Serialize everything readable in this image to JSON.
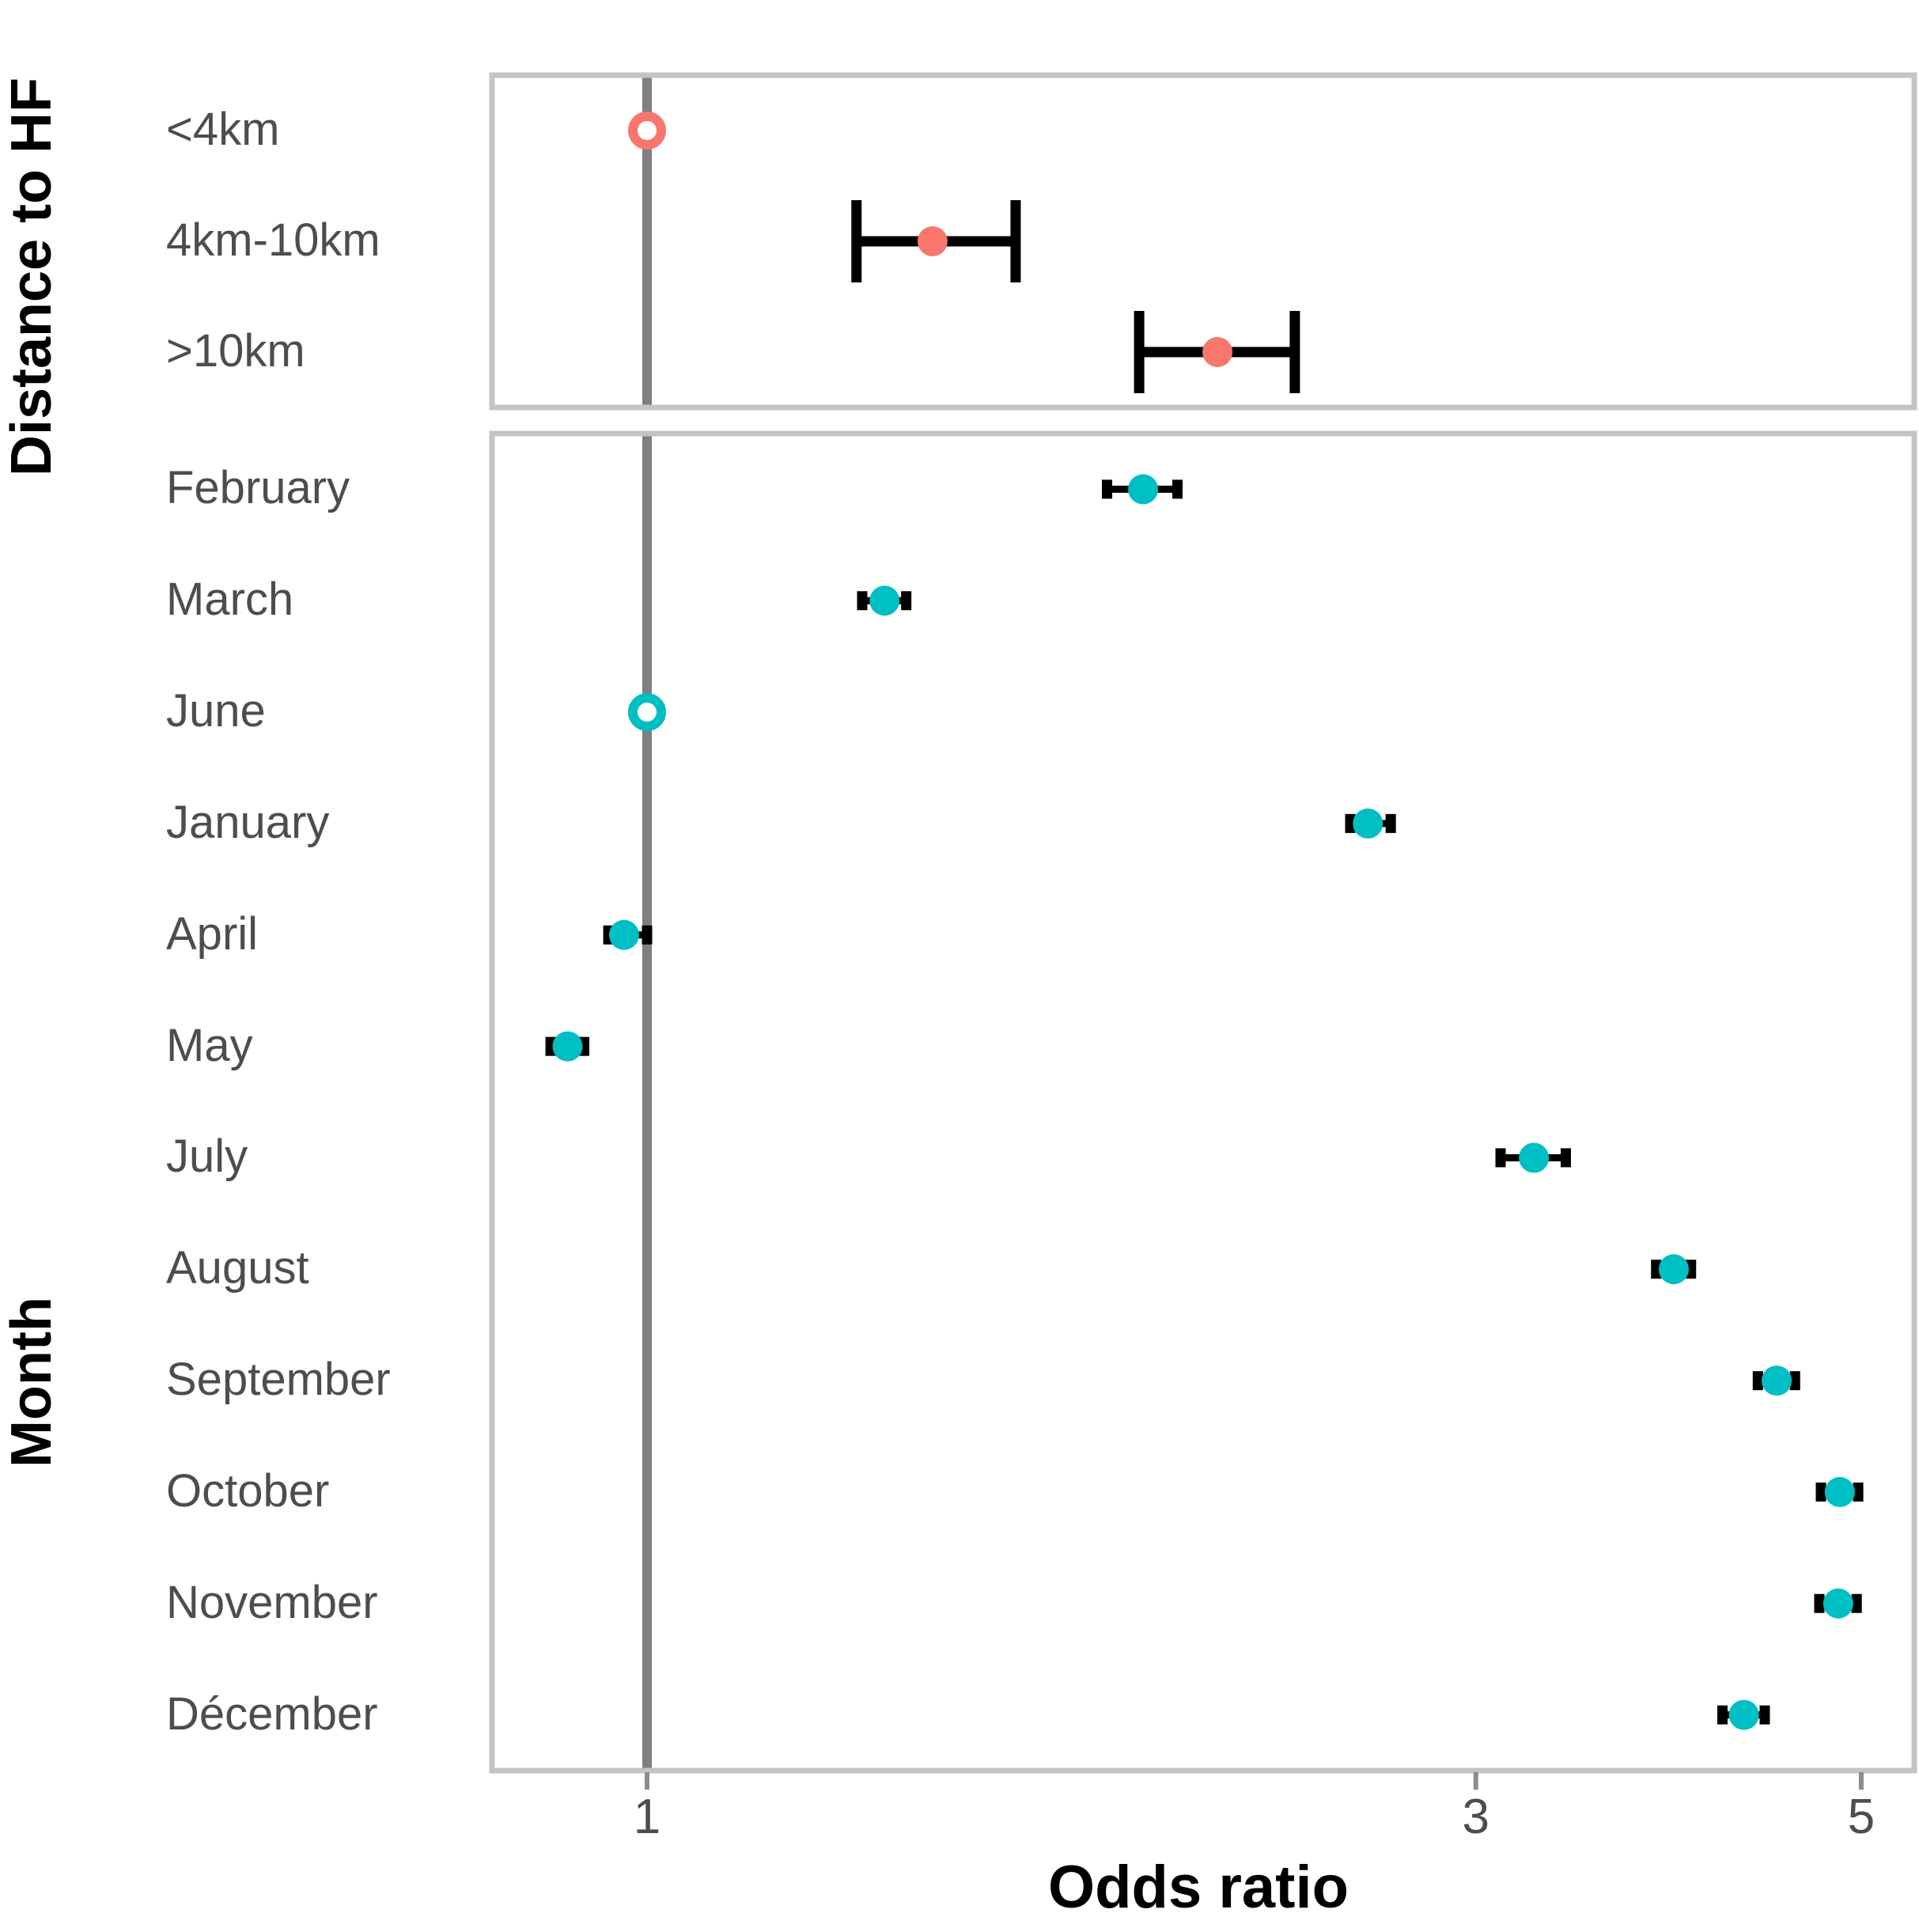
{
  "chart_data": {
    "type": "scatter",
    "title": "",
    "xlabel": "Odds ratio",
    "x_scale": "log",
    "x_ticks": [
      1,
      3,
      5
    ],
    "x_range": [
      0.81,
      5.37
    ],
    "reference_line_x": 1,
    "grid": false,
    "legend": "none",
    "panels": [
      {
        "ylabel": "Distance to HF",
        "point_color": "#F8766D",
        "rows": [
          {
            "label": "<4km",
            "or": 1.0,
            "ci_low": null,
            "ci_high": null,
            "reference": true
          },
          {
            "label": "4km-10km",
            "or": 1.46,
            "ci_low": 1.32,
            "ci_high": 1.63,
            "reference": false
          },
          {
            "label": ">10km",
            "or": 2.13,
            "ci_low": 1.92,
            "ci_high": 2.36,
            "reference": false
          }
        ]
      },
      {
        "ylabel": "Month",
        "point_color": "#00BFC4",
        "rows": [
          {
            "label": "February",
            "or": 1.93,
            "ci_low": 1.84,
            "ci_high": 2.02,
            "reference": false
          },
          {
            "label": "March",
            "or": 1.37,
            "ci_low": 1.33,
            "ci_high": 1.41,
            "reference": false
          },
          {
            "label": "June",
            "or": 1.0,
            "ci_low": null,
            "ci_high": null,
            "reference": true
          },
          {
            "label": "January",
            "or": 2.6,
            "ci_low": 2.54,
            "ci_high": 2.68,
            "reference": false
          },
          {
            "label": "April",
            "or": 0.97,
            "ci_low": 0.95,
            "ci_high": 1.0,
            "reference": false
          },
          {
            "label": "May",
            "or": 0.9,
            "ci_low": 0.88,
            "ci_high": 0.92,
            "reference": false
          },
          {
            "label": "July",
            "or": 3.24,
            "ci_low": 3.1,
            "ci_high": 3.38,
            "reference": false
          },
          {
            "label": "August",
            "or": 3.9,
            "ci_low": 3.81,
            "ci_high": 3.99,
            "reference": false
          },
          {
            "label": "September",
            "or": 4.47,
            "ci_low": 4.36,
            "ci_high": 4.58,
            "reference": false
          },
          {
            "label": "October",
            "or": 4.86,
            "ci_low": 4.74,
            "ci_high": 4.98,
            "reference": false
          },
          {
            "label": "November",
            "or": 4.85,
            "ci_low": 4.73,
            "ci_high": 4.97,
            "reference": false
          },
          {
            "label": "Décember",
            "or": 4.28,
            "ci_low": 4.16,
            "ci_high": 4.4,
            "reference": false
          }
        ]
      }
    ],
    "colors": {
      "distance_points": "#F8766D",
      "month_points": "#00BFC4",
      "error_bars": "#000000",
      "reference_line": "#7F7F7F",
      "panel_border": "#C4C4C4",
      "axis_text": "#4D4D4D",
      "axis_title": "#000000",
      "tick_mark": "#8C8C8C"
    }
  }
}
